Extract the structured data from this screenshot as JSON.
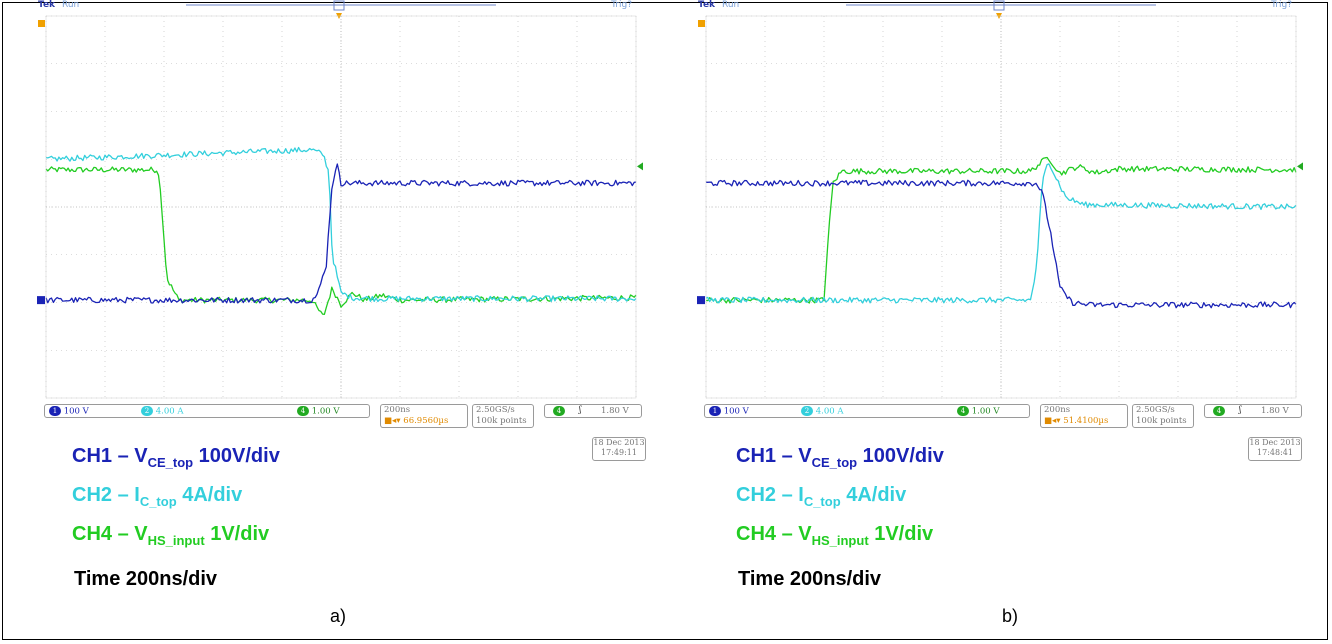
{
  "colors": {
    "ch1": "#1a23b5",
    "ch2": "#33cfdc",
    "ch4": "#22cc22",
    "grid": "#b9b9b9",
    "bg": "#ffffff"
  },
  "scope_header": {
    "brand": "Tek",
    "state": "Run",
    "trigger": "Trig?"
  },
  "panels": [
    {
      "id": "a",
      "label": "a)",
      "status": {
        "ch1": {
          "num": "1",
          "value": "100 V"
        },
        "ch2": {
          "num": "2",
          "value": "4.00 A"
        },
        "ch4": {
          "num": "4",
          "value": "1.00 V"
        },
        "timebase": "200ns",
        "delay": "66.9560µs",
        "sample_rate": "2.50GS/s",
        "points": "100k points",
        "trigger": {
          "num": "4",
          "slope": "ʃ",
          "level": "1.80 V"
        },
        "date": "18 Dec 2013",
        "time": "17:49:11"
      },
      "legend": {
        "ch1": {
          "prefix": "CH1 – V",
          "sub": "CE_top",
          "suffix": " 100V/div"
        },
        "ch2": {
          "prefix": "CH2 – I",
          "sub": "C_top",
          "suffix": " 4A/div"
        },
        "ch4": {
          "prefix": "CH4 – V",
          "sub": "HS_input",
          "suffix": " 1V/div"
        },
        "time": "Time 200ns/div"
      }
    },
    {
      "id": "b",
      "label": "b)",
      "status": {
        "ch1": {
          "num": "1",
          "value": "100 V"
        },
        "ch2": {
          "num": "2",
          "value": "4.00 A"
        },
        "ch4": {
          "num": "4",
          "value": "1.00 V"
        },
        "timebase": "200ns",
        "delay": "51.4100µs",
        "sample_rate": "2.50GS/s",
        "points": "100k points",
        "trigger": {
          "num": "4",
          "slope": "ʃ",
          "level": "1.80 V"
        },
        "date": "18 Dec 2013",
        "time": "17:48:41"
      },
      "legend": {
        "ch1": {
          "prefix": "CH1 – V",
          "sub": "CE_top",
          "suffix": " 100V/div"
        },
        "ch2": {
          "prefix": "CH2 – I",
          "sub": "C_top",
          "suffix": " 4A/div"
        },
        "ch4": {
          "prefix": "CH4 – V",
          "sub": "HS_input",
          "suffix": " 1V/div"
        },
        "time": "Time 200ns/div"
      }
    }
  ],
  "chart_data": [
    {
      "type": "line",
      "panel": "a",
      "x_unit": "div",
      "y_unit": "div",
      "xlim": [
        0,
        10
      ],
      "ylim": [
        -4,
        4
      ],
      "grid": true,
      "series": [
        {
          "name": "CH1",
          "x": [
            0,
            4.5,
            4.6,
            4.75,
            4.85,
            4.95,
            5.0,
            10
          ],
          "y": [
            -1.95,
            -1.95,
            -1.85,
            -1.2,
            0.5,
            0.9,
            0.5,
            0.5
          ]
        },
        {
          "name": "CH2",
          "x": [
            0,
            4.5,
            4.7,
            4.8,
            4.85,
            5.0,
            5.2,
            5.6,
            10
          ],
          "y": [
            1.0,
            1.2,
            1.1,
            0.7,
            -1.0,
            -1.8,
            -1.9,
            -1.92,
            -1.92
          ]
        },
        {
          "name": "CH4",
          "x": [
            0,
            1.9,
            1.95,
            2.05,
            2.25,
            4.5,
            4.7,
            4.85,
            5.0,
            5.2,
            5.4,
            5.7,
            6.0,
            10
          ],
          "y": [
            0.78,
            0.78,
            0.2,
            -1.5,
            -1.95,
            -1.95,
            -2.3,
            -1.7,
            -2.05,
            -1.8,
            -1.95,
            -1.85,
            -1.95,
            -1.9
          ]
        }
      ]
    },
    {
      "type": "line",
      "panel": "b",
      "x_unit": "div",
      "y_unit": "div",
      "xlim": [
        0,
        10
      ],
      "ylim": [
        -4,
        4
      ],
      "grid": true,
      "series": [
        {
          "name": "CH1",
          "x": [
            0,
            5.6,
            5.7,
            5.85,
            6.0,
            6.2,
            6.5,
            10
          ],
          "y": [
            0.5,
            0.5,
            0.3,
            -0.6,
            -1.7,
            -2.0,
            -2.05,
            -2.05
          ]
        },
        {
          "name": "CH2",
          "x": [
            0,
            5.5,
            5.6,
            5.7,
            5.8,
            5.9,
            6.1,
            6.4,
            10
          ],
          "y": [
            -1.95,
            -1.95,
            -1.3,
            0.5,
            1.0,
            0.7,
            0.2,
            0.05,
            0.0
          ]
        },
        {
          "name": "CH4",
          "x": [
            0,
            2.0,
            2.05,
            2.15,
            2.3,
            5.5,
            5.8,
            6.0,
            6.3,
            6.6,
            7.0,
            10
          ],
          "y": [
            -1.95,
            -1.95,
            -1.0,
            0.5,
            0.75,
            0.75,
            1.05,
            0.7,
            0.85,
            0.72,
            0.8,
            0.78
          ]
        }
      ]
    }
  ]
}
